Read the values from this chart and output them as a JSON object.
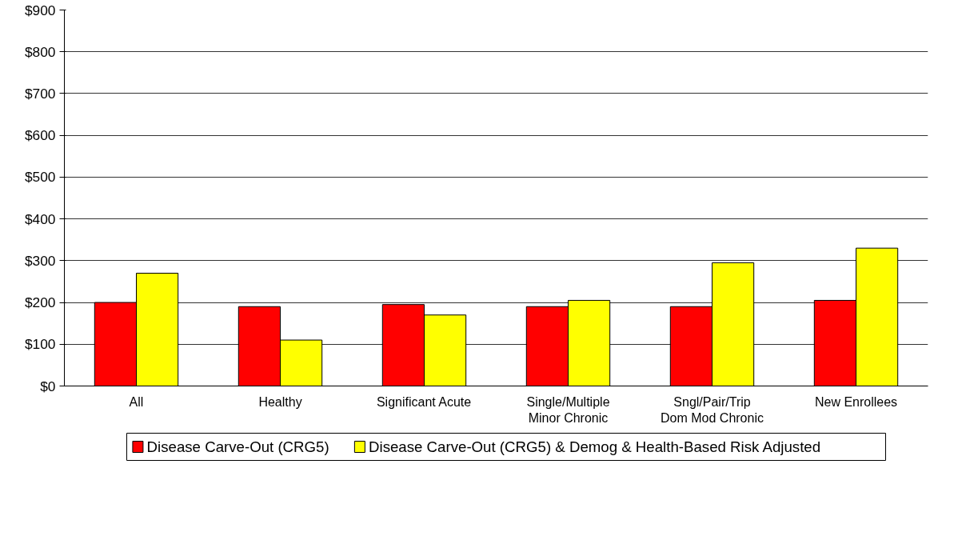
{
  "chart_data": {
    "type": "bar",
    "categories": [
      "All",
      "Healthy",
      "Significant Acute",
      "Single/Multiple\nMinor Chronic",
      "Sngl/Pair/Trip\nDom Mod Chronic",
      "New Enrollees"
    ],
    "series": [
      {
        "name": "Disease Carve-Out (CRG5)",
        "color": "#ff0000",
        "values": [
          200,
          190,
          195,
          190,
          190,
          205
        ]
      },
      {
        "name": "Disease Carve-Out (CRG5) & Demog & Health-Based Risk Adjusted",
        "color": "#ffff00",
        "values": [
          270,
          110,
          170,
          205,
          295,
          330
        ]
      }
    ],
    "ylim": [
      0,
      900
    ],
    "yticks": [
      {
        "value": 0,
        "label": "$0"
      },
      {
        "value": 100,
        "label": "$100"
      },
      {
        "value": 200,
        "label": "$200"
      },
      {
        "value": 300,
        "label": "$300"
      },
      {
        "value": 400,
        "label": "$400"
      },
      {
        "value": 500,
        "label": "$500"
      },
      {
        "value": 600,
        "label": "$600"
      },
      {
        "value": 700,
        "label": "$700"
      },
      {
        "value": 800,
        "label": "$800"
      },
      {
        "value": 900,
        "label": "$900"
      }
    ],
    "grid": "y",
    "legend": "bottom"
  }
}
